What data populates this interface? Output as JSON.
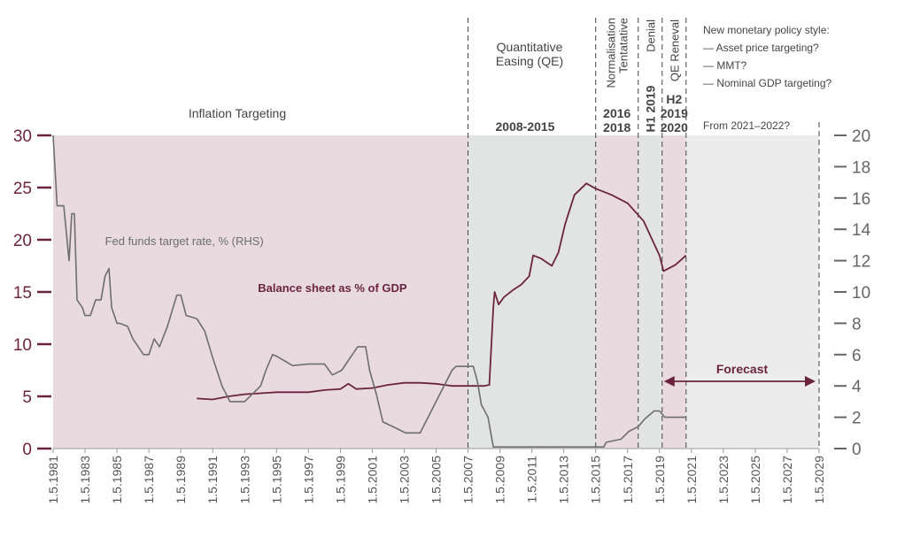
{
  "chart_data": {
    "type": "line",
    "colors": {
      "regime_pink": "#e8dadf",
      "regime_grey": "#e2e4e3",
      "forecast_grey": "#ececec",
      "balance_sheet": "#6b2440",
      "fed_funds": "#6e6e6e",
      "axis_left": "#6b2440",
      "axis_right": "#666666"
    },
    "x_range": [
      "1981-05-01",
      "2029-05-01"
    ],
    "x_ticks": [
      "1.5.1981",
      "1.5.1983",
      "1.5.1985",
      "1.5.1987",
      "1.5.1989",
      "1.5.1991",
      "1.5.1993",
      "1.5.1995",
      "1.5.1997",
      "1.5.1999",
      "1.5.2001",
      "1.5.2003",
      "1.5.2005",
      "1.5.2007",
      "1.5.2009",
      "1.5.2011",
      "1.5.2013",
      "1.5.2015",
      "1.5.2017",
      "1.5.2019",
      "1.5.2021",
      "1.5.2023",
      "1.5.2025",
      "1.5.2027",
      "1.5.2029"
    ],
    "y_left": {
      "ylim": [
        0,
        30
      ],
      "ticks": [
        "0",
        "5",
        "10",
        "15",
        "20",
        "25",
        "30"
      ]
    },
    "y_right": {
      "ylim": [
        0,
        20
      ],
      "ticks": [
        "0",
        "2",
        "4",
        "6",
        "8",
        "10",
        "12",
        "14",
        "16",
        "18",
        "20"
      ]
    },
    "regimes": [
      {
        "start": "1981-05-01",
        "end": "2007-05-01",
        "fill": "pink",
        "label_lines": [
          "Inflation Targeting"
        ],
        "period_lines": []
      },
      {
        "start": "2007-05-01",
        "end": "2015-05-01",
        "fill": "grey",
        "label_lines": [
          "Quantitative",
          "Easing (QE)"
        ],
        "period_lines": [
          "2008-2015"
        ]
      },
      {
        "start": "2015-05-01",
        "end": "2018-01-01",
        "fill": "pink",
        "label_lines": [
          "Normalisation",
          "Tentatative"
        ],
        "period_lines": [
          "2016",
          "2018"
        ]
      },
      {
        "start": "2018-01-01",
        "end": "2019-07-01",
        "fill": "grey",
        "label_lines": [
          "Denial"
        ],
        "period_lines": [
          "H1 2019"
        ]
      },
      {
        "start": "2019-07-01",
        "end": "2021-01-01",
        "fill": "pink",
        "label_lines": [
          "QE Reneval"
        ],
        "period_lines": [
          "H2",
          "2019",
          "2020"
        ]
      },
      {
        "start": "2021-01-01",
        "end": "2029-05-01",
        "fill": "forecast",
        "label_lines": [],
        "period_lines": []
      }
    ],
    "policy_note": [
      "New monetary policy style:",
      "— Asset price targeting?",
      "— MMT?",
      "— Nominal GDP targeting?",
      "",
      "From 2021–2022?"
    ],
    "forecast_label": "Forecast",
    "forecast_range": [
      "2019-07-01",
      "2029-05-01"
    ],
    "series": [
      {
        "name": "Balance sheet as % of GDP",
        "axis": "left",
        "label_at": [
          "1994-03-01",
          15
        ],
        "points": [
          [
            "1990-05-01",
            4.8
          ],
          [
            "1991-05-01",
            4.7
          ],
          [
            "1992-05-01",
            5.0
          ],
          [
            "1993-05-01",
            5.2
          ],
          [
            "1994-05-01",
            5.3
          ],
          [
            "1995-05-01",
            5.4
          ],
          [
            "1996-05-01",
            5.4
          ],
          [
            "1997-05-01",
            5.4
          ],
          [
            "1998-05-01",
            5.6
          ],
          [
            "1999-05-01",
            5.7
          ],
          [
            "1999-11-01",
            6.2
          ],
          [
            "2000-05-01",
            5.7
          ],
          [
            "2001-05-01",
            5.8
          ],
          [
            "2002-05-01",
            6.1
          ],
          [
            "2003-05-01",
            6.3
          ],
          [
            "2004-05-01",
            6.3
          ],
          [
            "2005-05-01",
            6.2
          ],
          [
            "2006-05-01",
            6.0
          ],
          [
            "2007-05-01",
            6.0
          ],
          [
            "2008-05-01",
            6.0
          ],
          [
            "2008-09-01",
            6.1
          ],
          [
            "2008-12-01",
            13.5
          ],
          [
            "2009-01-01",
            15.0
          ],
          [
            "2009-04-01",
            13.8
          ],
          [
            "2009-08-01",
            14.5
          ],
          [
            "2010-03-01",
            15.2
          ],
          [
            "2010-09-01",
            15.7
          ],
          [
            "2011-03-01",
            16.5
          ],
          [
            "2011-06-01",
            18.5
          ],
          [
            "2011-12-01",
            18.2
          ],
          [
            "2012-08-01",
            17.5
          ],
          [
            "2013-01-01",
            18.8
          ],
          [
            "2013-06-01",
            21.5
          ],
          [
            "2014-01-01",
            24.3
          ],
          [
            "2014-10-01",
            25.4
          ],
          [
            "2015-05-01",
            24.9
          ],
          [
            "2016-05-01",
            24.3
          ],
          [
            "2017-05-01",
            23.5
          ],
          [
            "2018-05-01",
            21.8
          ],
          [
            "2019-05-01",
            18.5
          ],
          [
            "2019-08-01",
            17.0
          ],
          [
            "2020-05-01",
            17.6
          ],
          [
            "2021-01-01",
            18.5
          ]
        ]
      },
      {
        "name": "Fed funds target rate, % (RHS)",
        "axis": "right",
        "label_at": [
          "1984-08-01",
          13
        ],
        "points": [
          [
            "1981-05-01",
            20.0
          ],
          [
            "1981-08-01",
            15.5
          ],
          [
            "1982-01-01",
            15.5
          ],
          [
            "1982-05-01",
            12.0
          ],
          [
            "1982-07-01",
            15.0
          ],
          [
            "1982-09-01",
            15.0
          ],
          [
            "1982-11-01",
            9.5
          ],
          [
            "1983-03-01",
            9.0
          ],
          [
            "1983-05-01",
            8.5
          ],
          [
            "1983-09-01",
            8.5
          ],
          [
            "1984-01-01",
            9.5
          ],
          [
            "1984-05-01",
            9.5
          ],
          [
            "1984-08-01",
            11.0
          ],
          [
            "1984-11-01",
            11.5
          ],
          [
            "1985-01-01",
            9.0
          ],
          [
            "1985-05-01",
            8.0
          ],
          [
            "1985-07-01",
            8.0
          ],
          [
            "1986-01-01",
            7.8
          ],
          [
            "1986-05-01",
            7.0
          ],
          [
            "1987-01-01",
            6.0
          ],
          [
            "1987-05-01",
            6.0
          ],
          [
            "1987-09-01",
            7.0
          ],
          [
            "1988-01-01",
            6.5
          ],
          [
            "1988-07-01",
            7.8
          ],
          [
            "1989-02-01",
            9.8
          ],
          [
            "1989-05-01",
            9.8
          ],
          [
            "1989-09-01",
            8.5
          ],
          [
            "1990-05-01",
            8.3
          ],
          [
            "1990-11-01",
            7.5
          ],
          [
            "1991-05-01",
            5.8
          ],
          [
            "1991-12-01",
            4.0
          ],
          [
            "1992-06-01",
            3.0
          ],
          [
            "1993-05-01",
            3.0
          ],
          [
            "1994-05-01",
            4.0
          ],
          [
            "1994-09-01",
            5.0
          ],
          [
            "1995-02-01",
            6.0
          ],
          [
            "1995-05-01",
            5.9
          ],
          [
            "1996-05-01",
            5.3
          ],
          [
            "1997-05-01",
            5.4
          ],
          [
            "1998-05-01",
            5.4
          ],
          [
            "1998-11-01",
            4.7
          ],
          [
            "1999-06-01",
            5.0
          ],
          [
            "2000-06-01",
            6.5
          ],
          [
            "2000-12-01",
            6.5
          ],
          [
            "2001-03-01",
            5.0
          ],
          [
            "2001-08-01",
            3.5
          ],
          [
            "2002-01-01",
            1.7
          ],
          [
            "2002-11-01",
            1.3
          ],
          [
            "2003-06-01",
            1.0
          ],
          [
            "2004-05-01",
            1.0
          ],
          [
            "2004-08-01",
            1.5
          ],
          [
            "2005-05-01",
            3.0
          ],
          [
            "2006-05-01",
            5.0
          ],
          [
            "2006-08-01",
            5.25
          ],
          [
            "2007-09-01",
            5.25
          ],
          [
            "2007-12-01",
            4.3
          ],
          [
            "2008-03-01",
            2.8
          ],
          [
            "2008-08-01",
            2.0
          ],
          [
            "2008-12-01",
            0.1
          ],
          [
            "2015-11-01",
            0.1
          ],
          [
            "2016-01-01",
            0.4
          ],
          [
            "2016-12-01",
            0.6
          ],
          [
            "2017-06-01",
            1.1
          ],
          [
            "2018-01-01",
            1.4
          ],
          [
            "2018-06-01",
            1.9
          ],
          [
            "2019-01-01",
            2.4
          ],
          [
            "2019-05-01",
            2.4
          ],
          [
            "2019-09-01",
            2.0
          ],
          [
            "2021-01-01",
            2.0
          ]
        ]
      }
    ]
  }
}
